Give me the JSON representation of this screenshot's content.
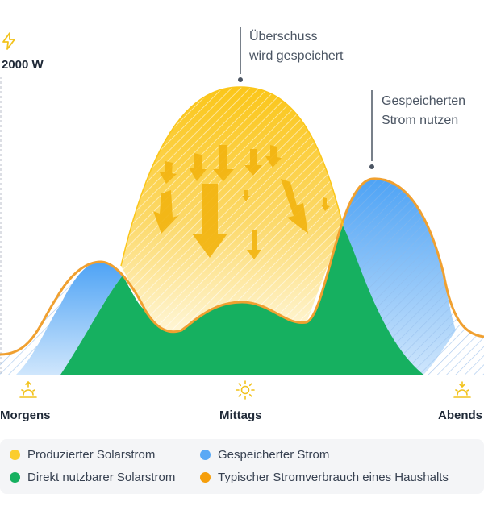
{
  "axis": {
    "max_label": "2000 W",
    "bolt_icon": "lightning-bolt-icon"
  },
  "annotations": {
    "surplus": {
      "line1": "Überschuss",
      "line2": "wird gespeichert"
    },
    "use_stored": {
      "line1": "Gespeicherten",
      "line2": "Strom nutzen"
    }
  },
  "times": {
    "morning": {
      "label": "Morgens",
      "icon": "sunrise-icon"
    },
    "noon": {
      "label": "Mittags",
      "icon": "sun-icon"
    },
    "evening": {
      "label": "Abends",
      "icon": "sunset-icon"
    }
  },
  "legend": {
    "produced": {
      "label": "Produzierter Solarstrom",
      "color": "#fbcd2f"
    },
    "stored": {
      "label": "Gespeicherter Strom",
      "color": "#5aa9f5"
    },
    "direct": {
      "label": "Direkt nutzbarer Solarstrom",
      "color": "#16b060"
    },
    "consumption": {
      "label": "Typischer Stromverbrauch eines Haushalts",
      "color": "#f59e0b"
    }
  }
}
